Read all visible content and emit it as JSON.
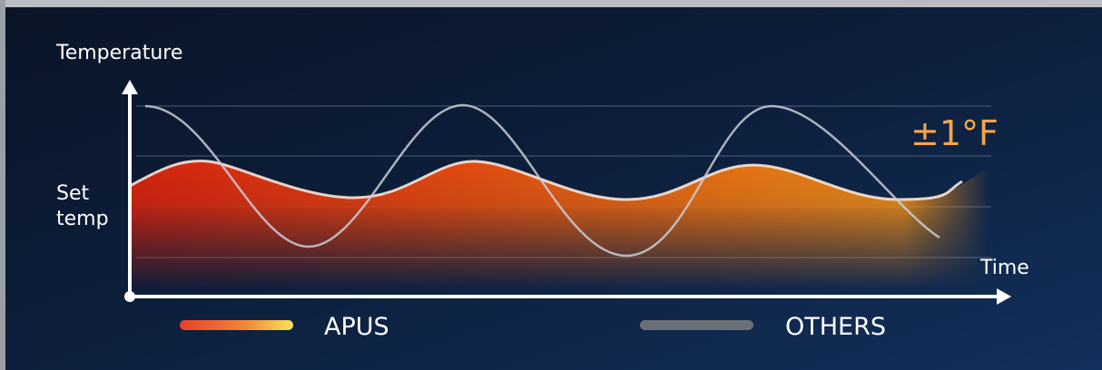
{
  "axis_labels": {
    "y": "Temperature",
    "x": "Time"
  },
  "set_temp_lines": [
    "Set",
    "temp"
  ],
  "callout": "±1°F",
  "legend": [
    "APUS",
    "OTHERS"
  ]
}
